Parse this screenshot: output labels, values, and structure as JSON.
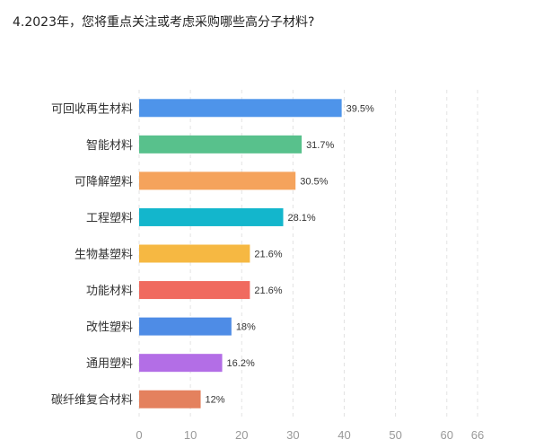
{
  "title": "4.2023年，您将重点关注或考虑采购哪些高分子材料?",
  "chart_data": {
    "type": "bar",
    "orientation": "horizontal",
    "categories": [
      "可回收再生材料",
      "智能材料",
      "可降解塑料",
      "工程塑料",
      "生物基塑料",
      "功能材料",
      "改性塑料",
      "通用塑料",
      "碳纤维复合材料"
    ],
    "values": [
      39.5,
      31.7,
      30.5,
      28.1,
      21.6,
      21.6,
      18,
      16.2,
      12
    ],
    "value_labels": [
      "39.5%",
      "31.7%",
      "30.5%",
      "28.1%",
      "21.6%",
      "21.6%",
      "18%",
      "16.2%",
      "12%"
    ],
    "colors": [
      "#4E94EA",
      "#58C18C",
      "#F5A35C",
      "#13B6CC",
      "#F6B842",
      "#F06A5F",
      "#4E8CE6",
      "#B36EE6",
      "#E4815E"
    ],
    "xlim": [
      0,
      66
    ],
    "xticks": [
      0,
      10,
      20,
      30,
      40,
      50,
      60,
      66
    ],
    "grid": true,
    "xlabel": "",
    "ylabel": ""
  }
}
